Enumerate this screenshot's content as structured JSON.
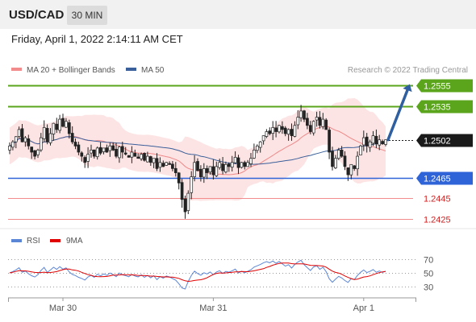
{
  "header": {
    "pair": "USD/CAD",
    "timeframe": "30 MIN"
  },
  "timestamp": "Friday, April 1, 2022 2:14:11 AM CET",
  "copyright": "Research © 2022 Trading Central",
  "colors": {
    "bollinger": "#f28c8c",
    "ma50": "#3a5f9a",
    "resistance": "#5aa51c",
    "support": "#2f64d8",
    "support_light": "#f28c8c",
    "current": "#1a1a1a",
    "rsi": "#5b86d6",
    "rsi_ma": "#e00000",
    "arrow": "#2f5fa0",
    "candle_up": "#ffffff",
    "candle_down": "#222222"
  },
  "chart_data": [
    {
      "type": "candlestick",
      "legend": [
        {
          "name": "MA 20 + Bollinger Bands",
          "color": "#f28c8c"
        },
        {
          "name": "MA 50",
          "color": "#3a5f9a"
        }
      ],
      "ylim": [
        1.2416,
        1.2566
      ],
      "levels": [
        {
          "value": 1.2555,
          "label": "1.2555",
          "kind": "resistance"
        },
        {
          "value": 1.2535,
          "label": "1.2535",
          "kind": "resistance"
        },
        {
          "value": 1.2502,
          "label": "1.2502",
          "kind": "current"
        },
        {
          "value": 1.2465,
          "label": "1.2465",
          "kind": "support"
        },
        {
          "value": 1.2445,
          "label": "1.2445",
          "kind": "support_light"
        },
        {
          "value": 1.2425,
          "label": "1.2425",
          "kind": "support_light"
        }
      ],
      "forecast_target": 1.2555,
      "close": [
        1.2496,
        1.25,
        1.2505,
        1.2512,
        1.25,
        1.2504,
        1.2496,
        1.249,
        1.2486,
        1.2492,
        1.2504,
        1.2514,
        1.25,
        1.2508,
        1.2518,
        1.2512,
        1.2522,
        1.2515,
        1.252,
        1.2508,
        1.25,
        1.2496,
        1.249,
        1.2486,
        1.248,
        1.2488,
        1.2492,
        1.2486,
        1.2494,
        1.2489,
        1.2494,
        1.249,
        1.2496,
        1.2492,
        1.2486,
        1.2495,
        1.249,
        1.2488,
        1.2485,
        1.249,
        1.2486,
        1.2484,
        1.2488,
        1.2482,
        1.2486,
        1.248,
        1.2484,
        1.2474,
        1.248,
        1.2476,
        1.248,
        1.2478,
        1.2474,
        1.247,
        1.246,
        1.2444,
        1.2432,
        1.245,
        1.2466,
        1.248,
        1.2472,
        1.2466,
        1.2474,
        1.247,
        1.2476,
        1.2468,
        1.2476,
        1.248,
        1.2472,
        1.2478,
        1.2476,
        1.248,
        1.2485,
        1.2475,
        1.248,
        1.2476,
        1.248,
        1.2484,
        1.2492,
        1.2496,
        1.25,
        1.2506,
        1.251,
        1.2508,
        1.2514,
        1.251,
        1.2516,
        1.2512,
        1.2508,
        1.2512,
        1.2506,
        1.2516,
        1.2524,
        1.253,
        1.2522,
        1.2516,
        1.251,
        1.252,
        1.2524,
        1.2516,
        1.2522,
        1.2512,
        1.249,
        1.2476,
        1.2484,
        1.2492,
        1.2486,
        1.2476,
        1.2468,
        1.2478,
        1.2474,
        1.2486,
        1.2496,
        1.2504,
        1.2496,
        1.25,
        1.2506,
        1.2498,
        1.2502,
        1.2498,
        1.2502
      ],
      "rsi": {
        "legend": [
          {
            "name": "RSI",
            "color": "#5b86d6"
          },
          {
            "name": "9MA",
            "color": "#e00000"
          }
        ],
        "levels": [
          {
            "value": 70,
            "label": "70"
          },
          {
            "value": 50,
            "label": "50"
          },
          {
            "value": 30,
            "label": "30"
          }
        ],
        "ylim": [
          20,
          80
        ]
      },
      "x_labels": [
        {
          "label": "Mar 30",
          "index": 17
        },
        {
          "label": "Mar 31",
          "index": 65
        },
        {
          "label": "Apr 1",
          "index": 113
        }
      ]
    }
  ]
}
